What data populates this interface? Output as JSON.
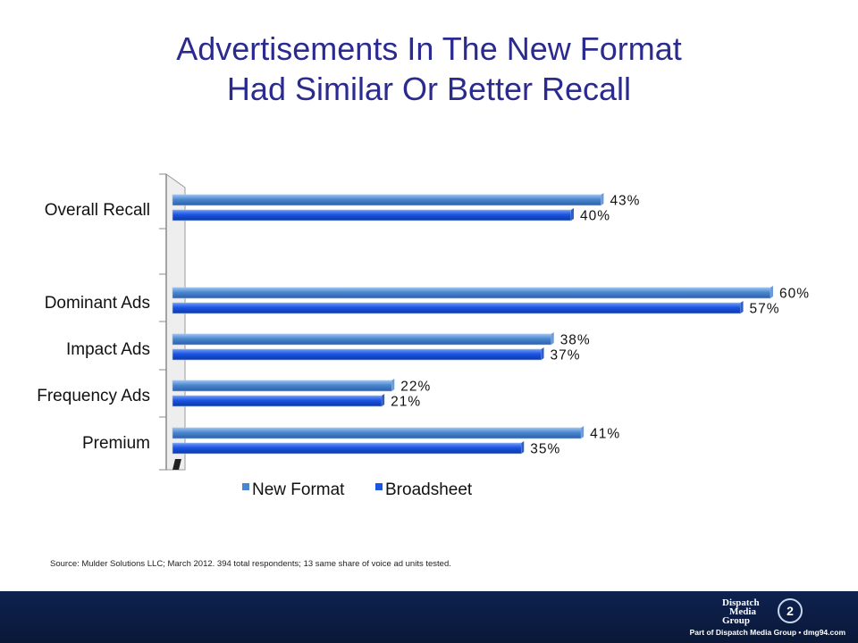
{
  "slide": {
    "title_line1": "Advertisements In The New Format",
    "title_line2": "Had Similar Or Better Recall",
    "source": "Source: Mulder Solutions LLC; March 2012. 394 total respondents; 13 same share of voice ad units tested."
  },
  "footer": {
    "logo_line1": "Dispatch",
    "logo_line2": "Media",
    "logo_line3": "Group",
    "logo_badge": "2",
    "tagline": "Part of Dispatch Media Group • dmg94.com"
  },
  "colors": {
    "title": "#2b2b8f",
    "new_format": "#4a86d0",
    "broadsheet": "#1a55e3",
    "footer_bg": "#0e2250"
  },
  "chart_data": {
    "type": "bar",
    "orientation": "horizontal",
    "categories": [
      "Overall Recall",
      "Dominant Ads",
      "Impact Ads",
      "Frequency Ads",
      "Premium"
    ],
    "series": [
      {
        "name": "New Format",
        "values": [
          43,
          60,
          38,
          22,
          41
        ],
        "labels": [
          "43%",
          "60%",
          "38%",
          "22%",
          "41%"
        ]
      },
      {
        "name": "Broadsheet",
        "values": [
          40,
          57,
          37,
          21,
          35
        ],
        "labels": [
          "40%",
          "57%",
          "37%",
          "21%",
          "35%"
        ]
      }
    ],
    "legend_position": "bottom",
    "grid": false,
    "xlim": [
      0,
      60
    ]
  }
}
